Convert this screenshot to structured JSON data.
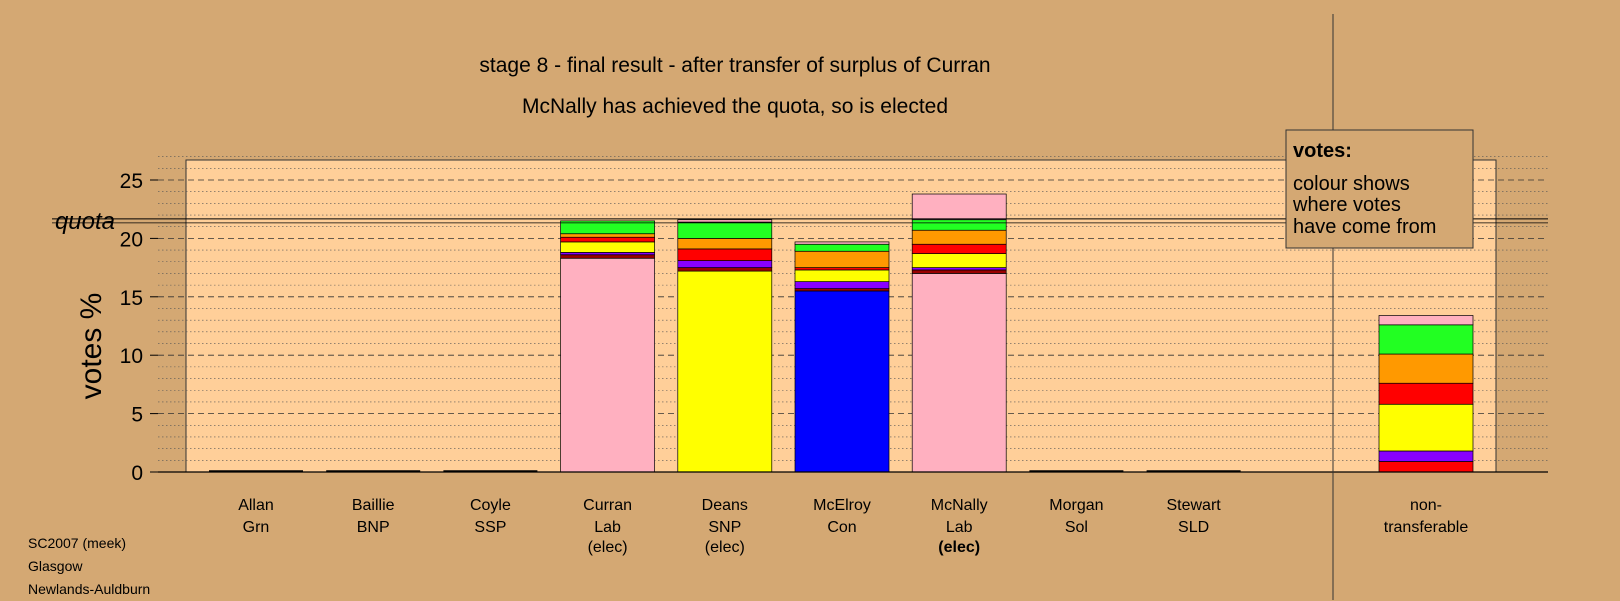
{
  "chart_data": {
    "type": "bar",
    "stacked": true,
    "title": "stage 8 - final result - after transfer of surplus of Curran",
    "subtitle": "McNally has achieved the quota, so is elected",
    "ylabel": "votes %",
    "ylim": [
      0,
      27
    ],
    "yticks": [
      0,
      5,
      10,
      15,
      20,
      25
    ],
    "quota": 21.5,
    "quota_label": "quota",
    "grid": true,
    "legend": {
      "title": "votes:",
      "lines": [
        "colour shows",
        "where votes",
        "have come from"
      ],
      "position": "top-right"
    },
    "colors": {
      "pink": "#ffb0c0",
      "yellow": "#ffff00",
      "blue": "#0000ff",
      "red": "#ff0000",
      "green": "#22ff22",
      "orange": "#ff9900",
      "purple": "#8800ff",
      "darkred": "#990000",
      "plot_bg": "#ffcf99",
      "page_bg": "#d4a873"
    },
    "candidates": [
      {
        "name": "Allan",
        "party": "Grn",
        "elected": "",
        "segments": []
      },
      {
        "name": "Baillie",
        "party": "BNP",
        "elected": "",
        "segments": []
      },
      {
        "name": "Coyle",
        "party": "SSP",
        "elected": "",
        "segments": []
      },
      {
        "name": "Curran",
        "party": "Lab",
        "elected": "(elec)",
        "bold": false,
        "segments": [
          {
            "color": "pink",
            "value": 18.3
          },
          {
            "color": "darkred",
            "value": 0.3
          },
          {
            "color": "purple",
            "value": 0.2
          },
          {
            "color": "yellow",
            "value": 0.9
          },
          {
            "color": "red",
            "value": 0.4
          },
          {
            "color": "orange",
            "value": 0.3
          },
          {
            "color": "green",
            "value": 1.1
          }
        ]
      },
      {
        "name": "Deans",
        "party": "SNP",
        "elected": "(elec)",
        "bold": false,
        "segments": [
          {
            "color": "yellow",
            "value": 17.2
          },
          {
            "color": "darkred",
            "value": 0.3
          },
          {
            "color": "purple",
            "value": 0.6
          },
          {
            "color": "red",
            "value": 1.0
          },
          {
            "color": "orange",
            "value": 0.9
          },
          {
            "color": "green",
            "value": 1.4
          },
          {
            "color": "pink",
            "value": 0.2
          }
        ]
      },
      {
        "name": "McElroy",
        "party": "Con",
        "elected": "",
        "segments": [
          {
            "color": "blue",
            "value": 15.5
          },
          {
            "color": "darkred",
            "value": 0.2
          },
          {
            "color": "purple",
            "value": 0.6
          },
          {
            "color": "yellow",
            "value": 1.0
          },
          {
            "color": "red",
            "value": 0.2
          },
          {
            "color": "orange",
            "value": 1.4
          },
          {
            "color": "green",
            "value": 0.6
          },
          {
            "color": "pink",
            "value": 0.2
          }
        ]
      },
      {
        "name": "McNally",
        "party": "Lab",
        "elected": "(elec)",
        "bold": true,
        "segments": [
          {
            "color": "pink",
            "value": 17.0
          },
          {
            "color": "darkred",
            "value": 0.3
          },
          {
            "color": "purple",
            "value": 0.2
          },
          {
            "color": "yellow",
            "value": 1.2
          },
          {
            "color": "red",
            "value": 0.8
          },
          {
            "color": "orange",
            "value": 1.2
          },
          {
            "color": "green",
            "value": 0.9
          },
          {
            "color": "pink",
            "value": 2.2
          }
        ]
      },
      {
        "name": "Morgan",
        "party": "Sol",
        "elected": "",
        "segments": []
      },
      {
        "name": "Stewart",
        "party": "SLD",
        "elected": "",
        "segments": []
      }
    ],
    "non_transferable": {
      "label_line1": "non-",
      "label_line2": "transferable",
      "segments": [
        {
          "color": "red",
          "value": 0.9
        },
        {
          "color": "purple",
          "value": 0.9
        },
        {
          "color": "yellow",
          "value": 4.0
        },
        {
          "color": "red",
          "value": 1.8
        },
        {
          "color": "orange",
          "value": 2.5
        },
        {
          "color": "green",
          "value": 2.5
        },
        {
          "color": "pink",
          "value": 0.8
        }
      ]
    }
  },
  "footer": {
    "line1": "SC2007 (meek)",
    "line2": "Glasgow",
    "line3": "Newlands-Auldburn"
  }
}
